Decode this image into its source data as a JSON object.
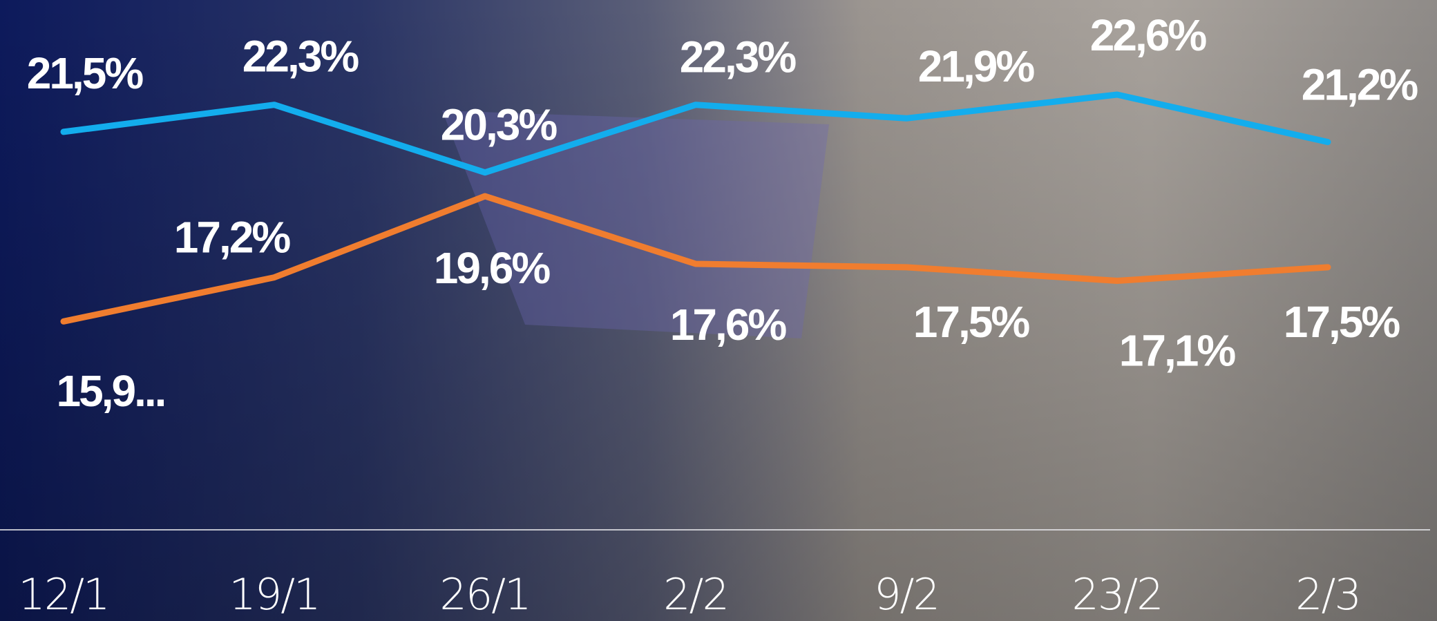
{
  "chart_data": {
    "type": "line",
    "categories": [
      "12/1",
      "19/1",
      "26/1",
      "2/2",
      "9/2",
      "23/2",
      "2/3"
    ],
    "series": [
      {
        "color": "#13aded",
        "values": [
          21.5,
          22.3,
          20.3,
          22.3,
          21.9,
          22.6,
          21.2
        ],
        "value_labels": [
          "21,5%",
          "22,3%",
          "20,3%",
          "22,3%",
          "21,9%",
          "22,6%",
          "21,2%"
        ]
      },
      {
        "color": "#f07d2f",
        "values": [
          15.9,
          17.2,
          19.6,
          17.6,
          17.5,
          17.1,
          17.5
        ],
        "value_labels": [
          "15,9...",
          "17,2%",
          "19,6%",
          "17,6%",
          "17,5%",
          "17,1%",
          "17,5%"
        ]
      }
    ]
  }
}
